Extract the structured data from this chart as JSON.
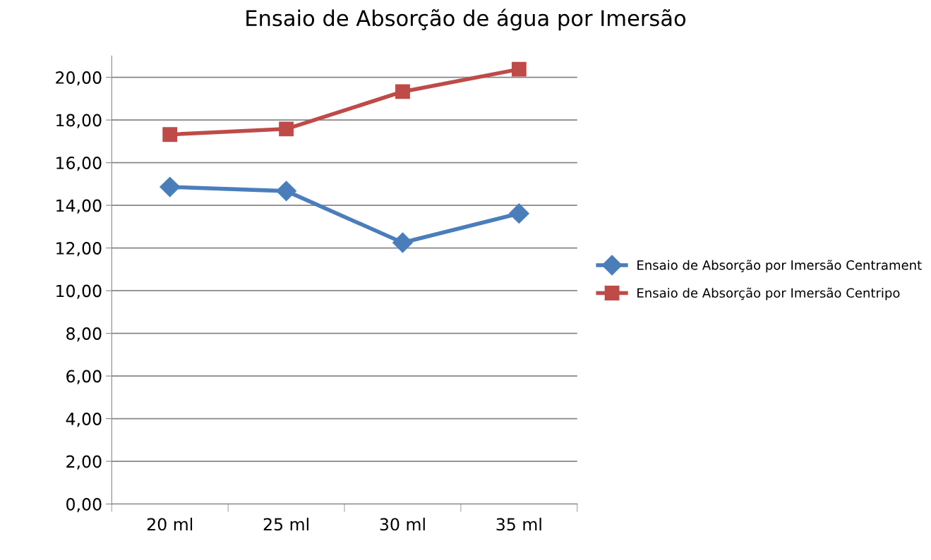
{
  "chart_data": {
    "type": "line",
    "title": "Ensaio de Absorção de água por Imersão",
    "categories": [
      "20 ml",
      "25 ml",
      "30 ml",
      "35 ml"
    ],
    "series": [
      {
        "name": "Ensaio de Absorção por Imersão Centrament",
        "color": "#4a7ebb",
        "marker": "diamond",
        "values": [
          14.86,
          14.67,
          12.25,
          13.62
        ]
      },
      {
        "name": "Ensaio de Absorção por Imersão Centripo",
        "color": "#be4b48",
        "marker": "square",
        "values": [
          17.32,
          17.58,
          19.33,
          20.38
        ]
      }
    ],
    "ylim": [
      0,
      21
    ],
    "yticks": [
      {
        "value": 0,
        "label": "0,00"
      },
      {
        "value": 2,
        "label": "2,00"
      },
      {
        "value": 4,
        "label": "4,00"
      },
      {
        "value": 6,
        "label": "6,00"
      },
      {
        "value": 8,
        "label": "8,00"
      },
      {
        "value": 10,
        "label": "10,00"
      },
      {
        "value": 12,
        "label": "12,00"
      },
      {
        "value": 14,
        "label": "14,00"
      },
      {
        "value": 16,
        "label": "16,00"
      },
      {
        "value": 18,
        "label": "18,00"
      },
      {
        "value": 20,
        "label": "20,00"
      }
    ],
    "grid": "y",
    "legend": "right"
  }
}
